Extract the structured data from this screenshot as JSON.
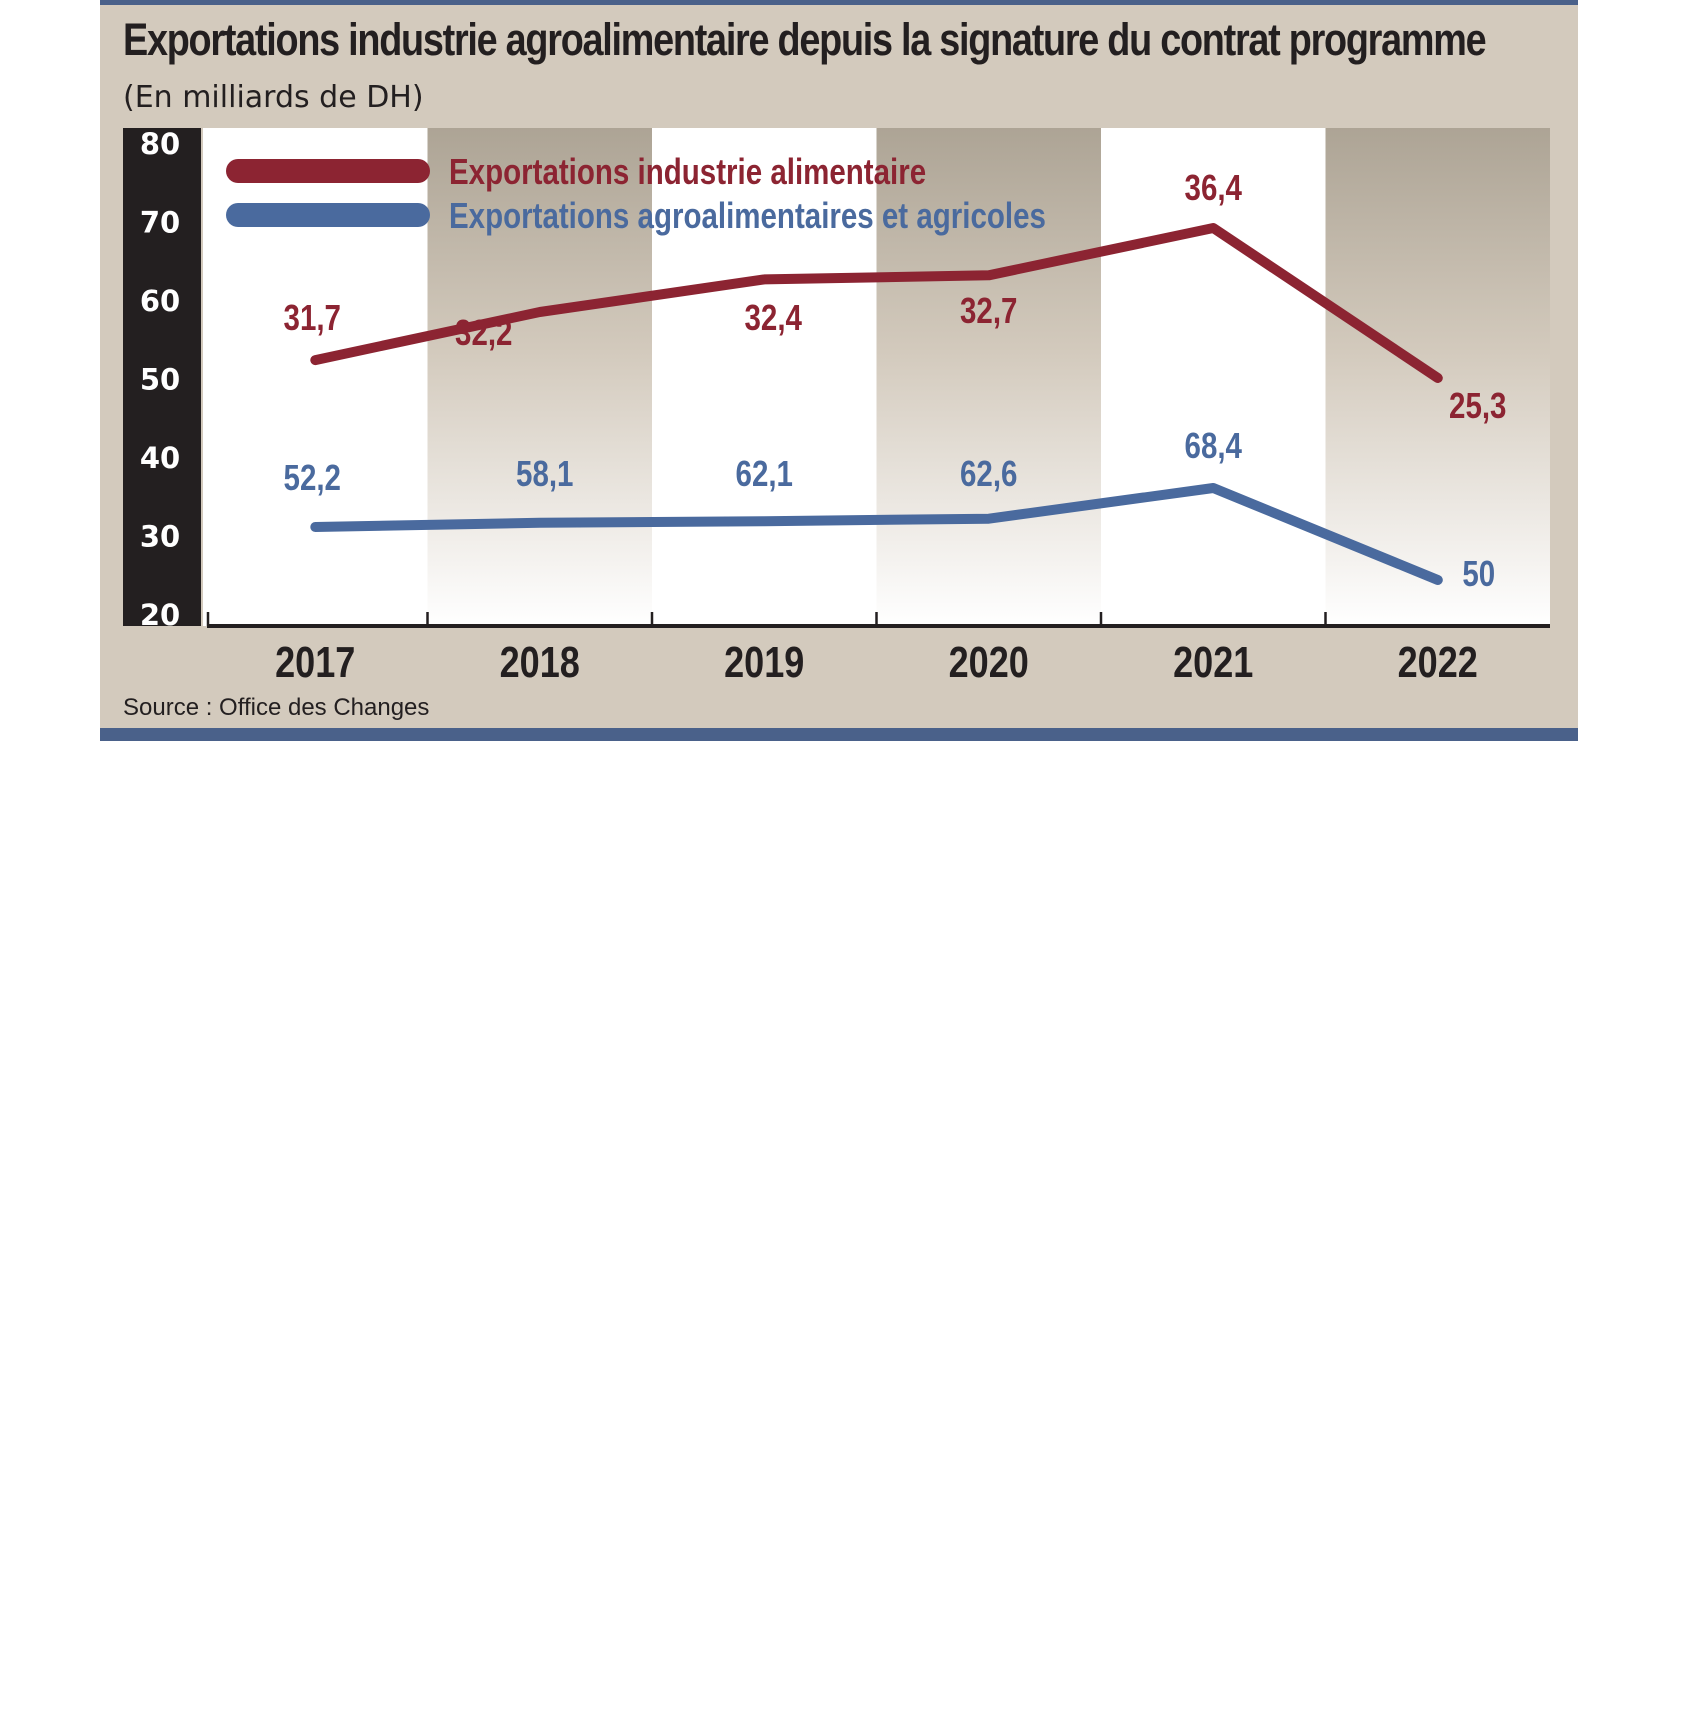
{
  "title": "Exportations industrie agroalimentaire depuis la signature du contrat programme",
  "subtitle": "(En milliards de DH)",
  "source": "Source : Office des Changes",
  "colors": {
    "series_1": "#8c2432",
    "series_2": "#4a6a9e",
    "background": "#d3cabd",
    "rule": "#4a618a",
    "axis_bar": "#231f20",
    "text": "#231f20"
  },
  "chart_data": {
    "type": "line",
    "x": [
      "2017",
      "2018",
      "2019",
      "2020",
      "2021",
      "2022"
    ],
    "yticks": [
      "20",
      "30",
      "40",
      "50",
      "60",
      "70",
      "80"
    ],
    "ylim": [
      20,
      80
    ],
    "y_axis_note": "series are plotted on a relative scale; the printed data labels are the values",
    "grid": false,
    "legend_position": "top-left",
    "series": [
      {
        "name": "Exportations industrie alimentaire",
        "values": [
          31.7,
          32.2,
          32.4,
          32.7,
          36.4,
          25.3
        ],
        "labels": [
          "31,7",
          "32,2",
          "32,4",
          "32,7",
          "36,4",
          "25,3"
        ]
      },
      {
        "name": "Exportations agroalimentaires et agricoles",
        "values": [
          52.2,
          58.1,
          62.1,
          62.6,
          68.4,
          50
        ],
        "labels": [
          "52,2",
          "58,1",
          "62,1",
          "62,6",
          "68,4",
          "50"
        ]
      }
    ]
  }
}
